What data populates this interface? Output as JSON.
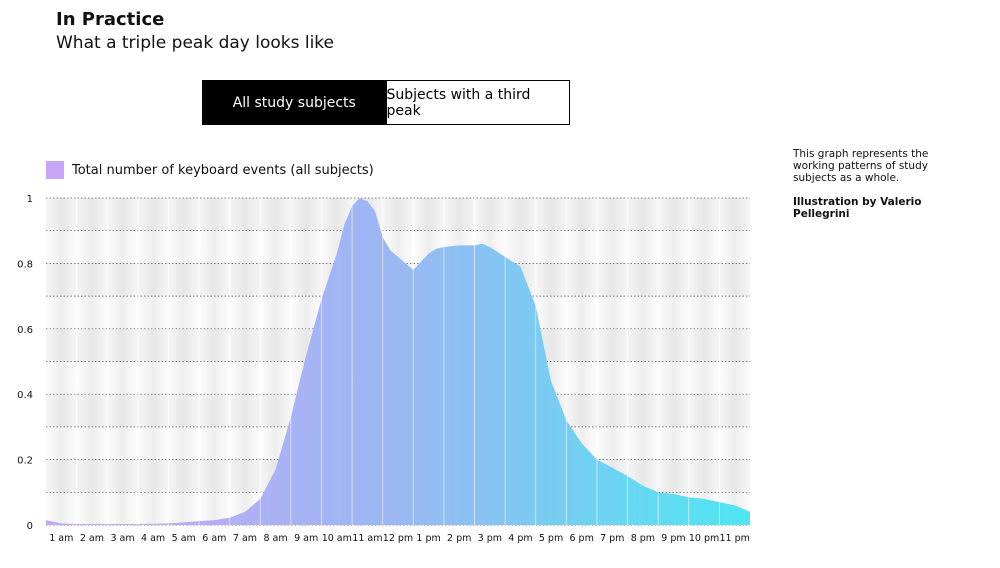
{
  "header": {
    "title": "In Practice",
    "subtitle": "What a triple peak day looks like"
  },
  "toggle": {
    "options": [
      {
        "label": "All study subjects",
        "active": true
      },
      {
        "label": "Subjects with a third peak",
        "active": false
      }
    ]
  },
  "side_note": {
    "description": "This graph represents the working patterns of study subjects as a whole.",
    "credit": "Illustration by Valerio Pellegrini"
  },
  "colors": {
    "gradient_start": "#c8a6f8",
    "gradient_mid": "#9ab8f3",
    "gradient_end": "#4ee6f2",
    "toggle_active_bg": "#000000"
  },
  "chart_data": {
    "type": "area",
    "title": "",
    "xlabel": "",
    "ylabel": "",
    "legend": [
      {
        "label": "Total number of keyboard events (all subjects)",
        "color": "#c8a6f8"
      }
    ],
    "ylim": [
      0,
      1
    ],
    "yticks": [
      0,
      0.2,
      0.4,
      0.6,
      0.8,
      1
    ],
    "ytick_labels": [
      "0",
      "0.2",
      "0.4",
      "0.6",
      "0.8",
      "1"
    ],
    "xlim": [
      0,
      23
    ],
    "xticks": [
      0.5,
      1.5,
      2.5,
      3.5,
      4.5,
      5.5,
      6.5,
      7.5,
      8.5,
      9.5,
      10.5,
      11.5,
      12.5,
      13.5,
      14.5,
      15.5,
      16.5,
      17.5,
      18.5,
      19.5,
      20.5,
      21.5,
      22.5
    ],
    "xtick_labels": [
      "1 am",
      "2 am",
      "3 am",
      "4 am",
      "5 am",
      "6 am",
      "7 am",
      "8 am",
      "9 am",
      "10 am",
      "11 am",
      "12 pm",
      "1 pm",
      "2 pm",
      "3 pm",
      "4 pm",
      "5 pm",
      "6 pm",
      "7 pm",
      "8 pm",
      "9 pm",
      "10 pm",
      "11 pm"
    ],
    "series": [
      {
        "name": "Total number of keyboard events (all subjects)",
        "x": [
          0,
          0.5,
          1,
          1.5,
          2,
          2.5,
          3,
          3.5,
          4,
          4.5,
          5,
          5.5,
          6,
          6.5,
          7,
          7.5,
          8,
          8.5,
          9,
          9.25,
          9.5,
          9.75,
          10,
          10.25,
          10.5,
          10.75,
          11,
          11.25,
          11.5,
          12,
          12.5,
          12.75,
          13,
          13.5,
          14,
          14.25,
          14.5,
          15,
          15.5,
          16,
          16.5,
          17,
          17.5,
          18,
          18.5,
          19,
          19.5,
          20,
          20.5,
          21,
          21.5,
          22,
          22.5,
          23
        ],
        "y": [
          0.015,
          0.005,
          0.003,
          0.003,
          0.003,
          0.003,
          0.003,
          0.004,
          0.005,
          0.008,
          0.012,
          0.015,
          0.022,
          0.04,
          0.08,
          0.17,
          0.33,
          0.52,
          0.69,
          0.76,
          0.83,
          0.92,
          0.975,
          1.0,
          0.99,
          0.96,
          0.88,
          0.84,
          0.82,
          0.78,
          0.83,
          0.845,
          0.85,
          0.855,
          0.855,
          0.86,
          0.85,
          0.82,
          0.79,
          0.67,
          0.44,
          0.32,
          0.25,
          0.2,
          0.175,
          0.15,
          0.12,
          0.1,
          0.095,
          0.085,
          0.08,
          0.07,
          0.06,
          0.04
        ]
      }
    ]
  }
}
